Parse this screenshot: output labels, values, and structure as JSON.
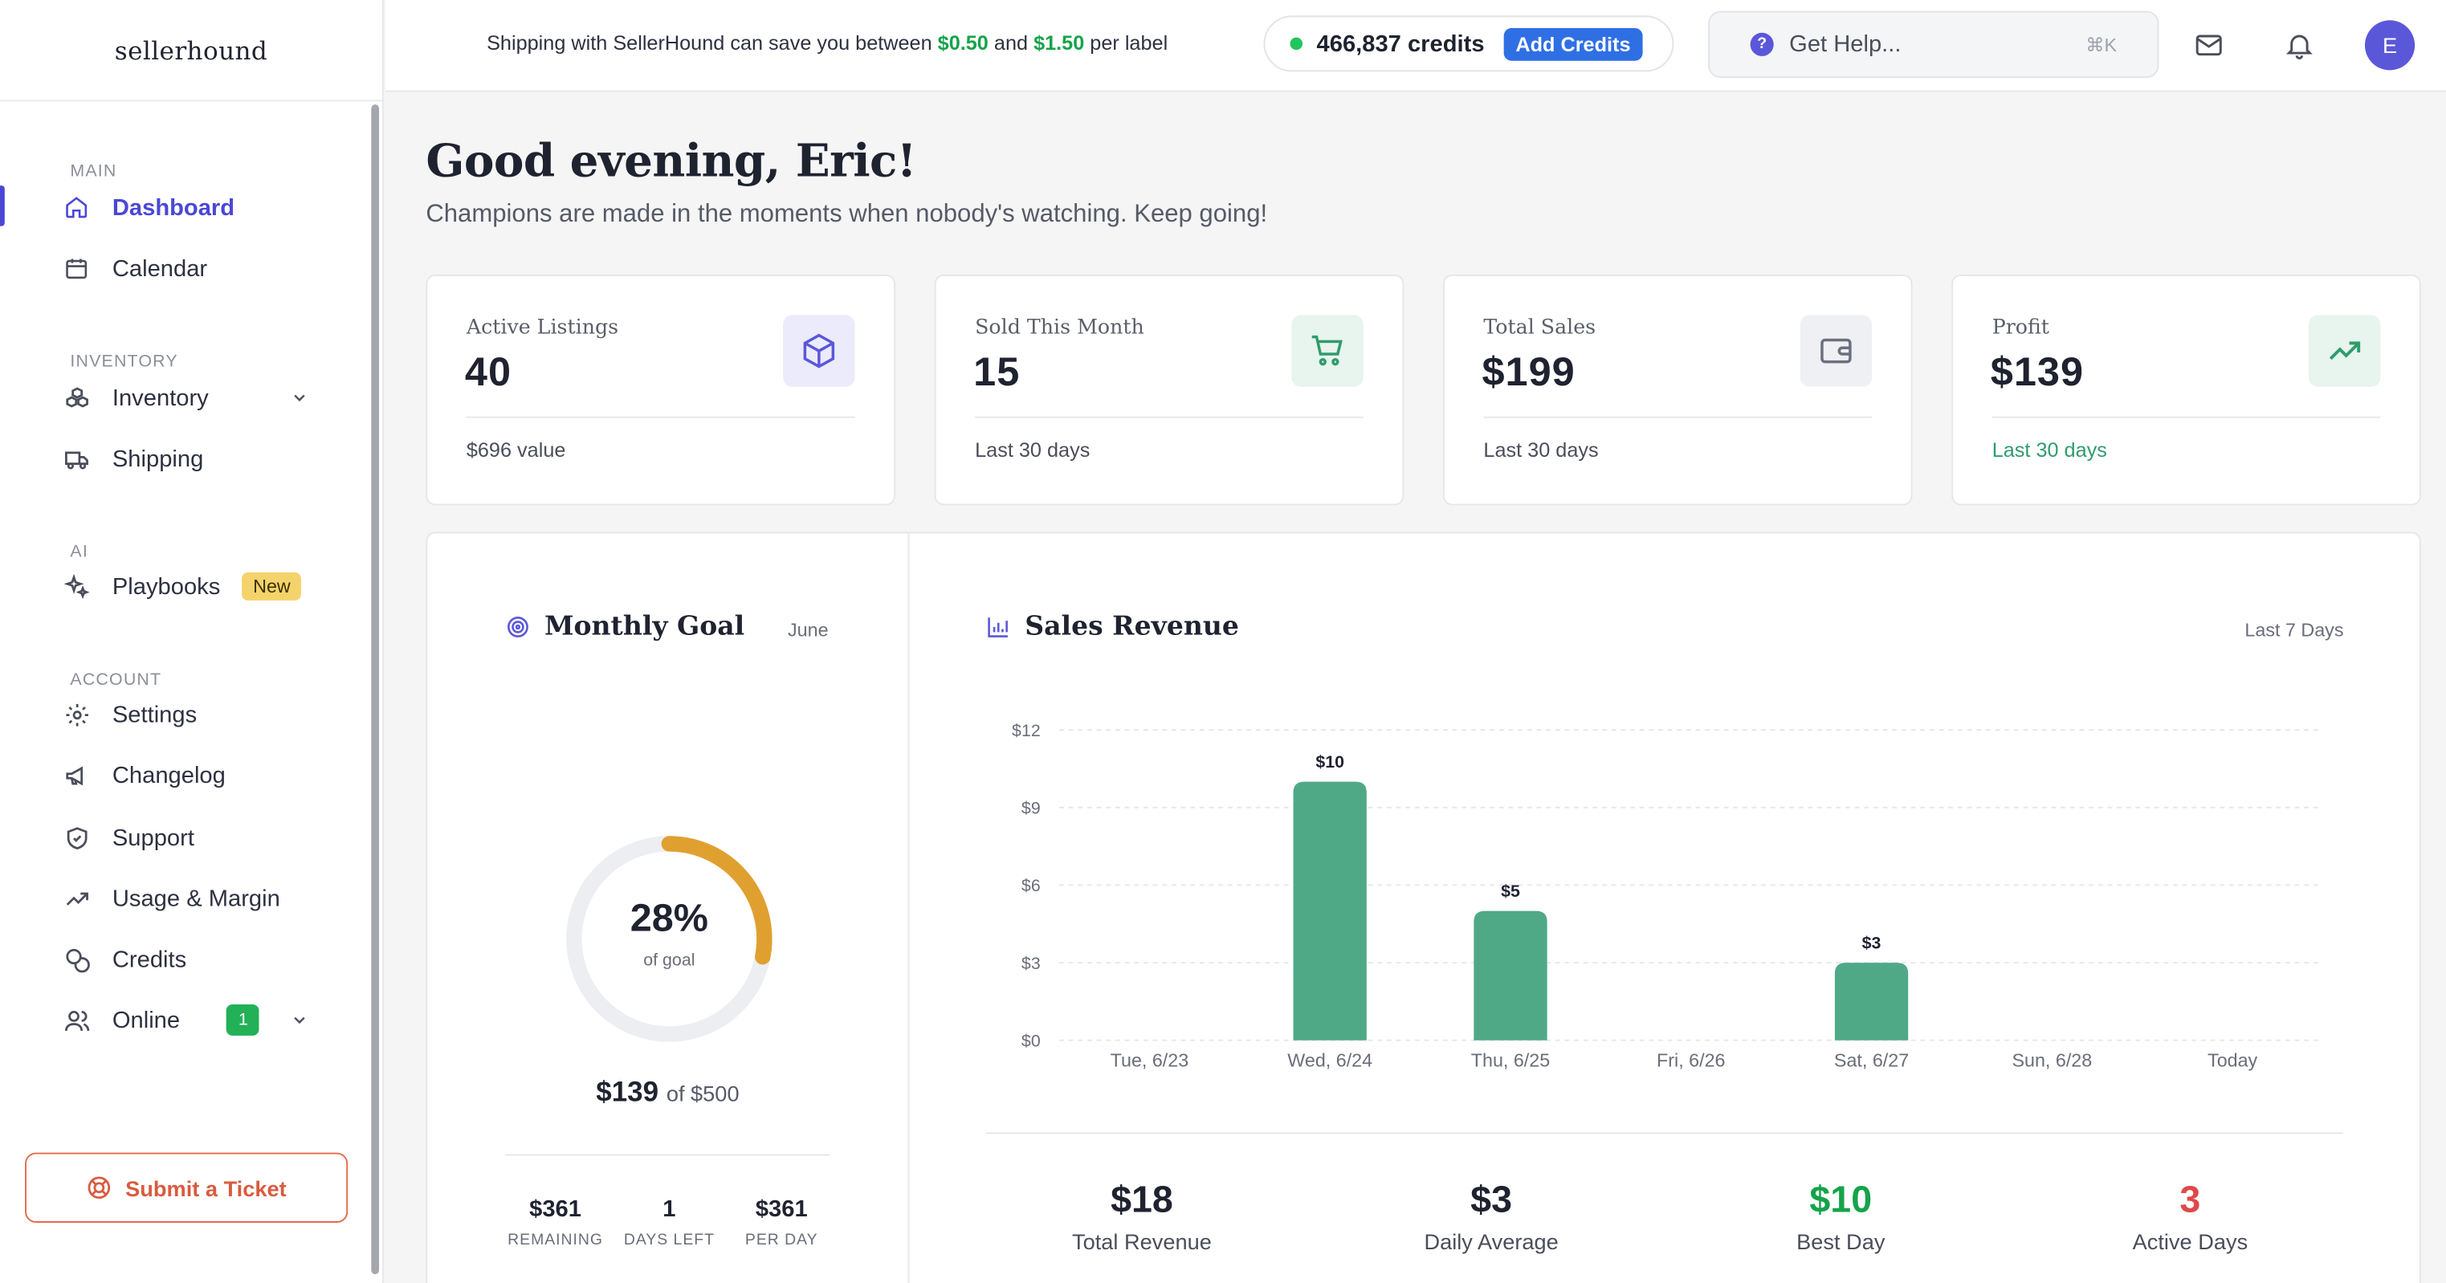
{
  "brand": "sellerhound",
  "topbar": {
    "ship_prefix": "Shipping with SellerHound can save you between ",
    "ship_min": "$0.50",
    "ship_and": " and ",
    "ship_max": "$1.50",
    "ship_suffix": " per label",
    "credits": "466,837 credits",
    "add_credits": "Add Credits",
    "help_placeholder": "Get Help...",
    "help_shortcut": "⌘K",
    "avatar_initial": "E"
  },
  "sidebar": {
    "sections": {
      "main": "MAIN",
      "inventory": "INVENTORY",
      "ai": "AI",
      "account": "ACCOUNT"
    },
    "items": {
      "dashboard": "Dashboard",
      "calendar": "Calendar",
      "inventory": "Inventory",
      "shipping": "Shipping",
      "playbooks": "Playbooks",
      "playbooks_badge": "New",
      "settings": "Settings",
      "changelog": "Changelog",
      "support": "Support",
      "usage": "Usage & Margin",
      "credits": "Credits",
      "online": "Online",
      "online_count": "1"
    },
    "ticket": "Submit a Ticket"
  },
  "greeting": {
    "title": "Good evening, Eric!",
    "subtitle": "Champions are made in the moments when nobody's watching. Keep going!"
  },
  "stats": [
    {
      "label": "Active Listings",
      "value": "40",
      "foot": "$696 value",
      "icon": "box-icon"
    },
    {
      "label": "Sold This Month",
      "value": "15",
      "foot": "Last 30 days",
      "icon": "cart-icon"
    },
    {
      "label": "Total Sales",
      "value": "$199",
      "foot": "Last 30 days",
      "icon": "wallet-icon"
    },
    {
      "label": "Profit",
      "value": "$139",
      "foot": "Last 30 days",
      "icon": "trending-up-icon"
    }
  ],
  "goal": {
    "title": "Monthly Goal",
    "month": "June",
    "percent": "28%",
    "percent_value": 0.28,
    "of_goal": "of goal",
    "current": "$139",
    "target": "of $500",
    "remaining": "$361",
    "remaining_label": "REMAINING",
    "days_left": "1",
    "days_left_label": "DAYS LEFT",
    "per_day": "$361",
    "per_day_label": "PER DAY"
  },
  "revenue": {
    "title": "Sales Revenue",
    "range": "Last 7 Days",
    "total": "$18",
    "total_label": "Total Revenue",
    "daily": "$3",
    "daily_label": "Daily Average",
    "best": "$10",
    "best_label": "Best Day",
    "active": "3",
    "active_label": "Active Days"
  },
  "colors": {
    "accent": "#4b47d6",
    "bar": "#4fa987",
    "goal_arc": "#e0a030",
    "positive": "#16a34a",
    "negative": "#e04848"
  },
  "chart_data": {
    "type": "bar",
    "categories": [
      "Tue, 6/23",
      "Wed, 6/24",
      "Thu, 6/25",
      "Fri, 6/26",
      "Sat, 6/27",
      "Sun, 6/28",
      "Today"
    ],
    "values": [
      0,
      10,
      5,
      0,
      3,
      0,
      0
    ],
    "data_labels": [
      "",
      "$10",
      "$5",
      "",
      "$3",
      "",
      ""
    ],
    "y_ticks": [
      "$0",
      "$3",
      "$6",
      "$9",
      "$12"
    ],
    "ylim": [
      0,
      12
    ],
    "grid": true,
    "title": "",
    "xlabel": "",
    "ylabel": ""
  }
}
